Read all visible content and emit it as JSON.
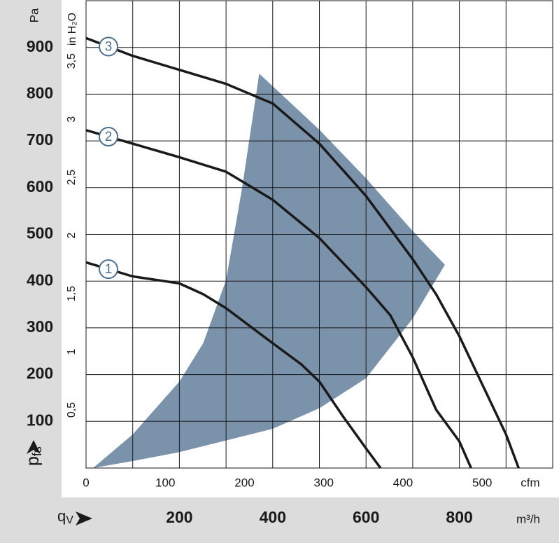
{
  "chart_data": {
    "type": "line",
    "y_unit": "Pa",
    "y_label": {
      "main": "p",
      "sub": "fs"
    },
    "x_label": {
      "main": "q",
      "sub": "V"
    },
    "x_unit": "m³/h",
    "x2_unit": "cfm",
    "y2_unit": "in H₂O",
    "xlim": [
      0,
      1000
    ],
    "ylim": [
      0,
      1000
    ],
    "xticks": [
      200,
      400,
      600,
      800
    ],
    "xgrid": [
      100,
      200,
      300,
      400,
      500,
      600,
      700,
      800,
      900
    ],
    "yticks": [
      100,
      200,
      300,
      400,
      500,
      600,
      700,
      800,
      900
    ],
    "x2lim": [
      0,
      589
    ],
    "x2ticks": [
      0,
      100,
      200,
      300,
      400,
      500
    ],
    "y2lim": [
      0,
      4.02
    ],
    "y2ticks": [
      {
        "value": 0.5,
        "label": "0,5"
      },
      1,
      {
        "value": 1.5,
        "label": "1,5"
      },
      2,
      {
        "value": 2.5,
        "label": "2,5"
      },
      3,
      {
        "value": 3.5,
        "label": "3,5"
      }
    ],
    "grid": true,
    "series": [
      {
        "name": "1",
        "color": "#1a1a1a",
        "x": [
          0,
          100,
          200,
          251,
          300,
          400,
          461,
          500,
          551,
          600,
          631
        ],
        "values": [
          440,
          410,
          395,
          372,
          342,
          267,
          222,
          185,
          110,
          42,
          0
        ]
      },
      {
        "name": "2",
        "color": "#1a1a1a",
        "x": [
          0,
          100,
          200,
          300,
          400,
          500,
          600,
          652,
          700,
          750,
          800,
          825
        ],
        "values": [
          723,
          694,
          665,
          634,
          574,
          492,
          387,
          327,
          237,
          125,
          57,
          0
        ]
      },
      {
        "name": "3",
        "color": "#1a1a1a",
        "x": [
          0,
          100,
          200,
          300,
          371,
          400,
          500,
          600,
          700,
          750,
          800,
          850,
          900,
          927
        ],
        "values": [
          920,
          882,
          852,
          822,
          792,
          780,
          694,
          582,
          447,
          372,
          282,
          177,
          72,
          0
        ]
      }
    ],
    "operating_range": {
      "color": "#7b93aa",
      "x": [
        15,
        100,
        200,
        251,
        300,
        334,
        371,
        500,
        600,
        700,
        769,
        700,
        600,
        500,
        400,
        200,
        100
      ],
      "values": [
        0,
        72,
        185,
        267,
        402,
        597,
        844,
        724,
        620,
        507,
        435,
        320,
        192,
        128,
        84,
        34,
        15
      ]
    }
  }
}
